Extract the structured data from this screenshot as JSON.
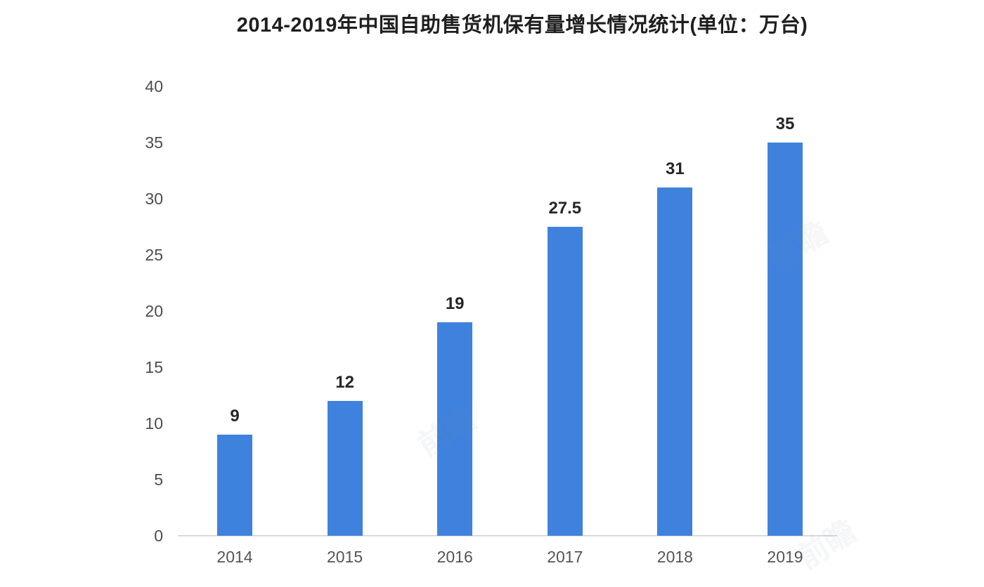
{
  "chart_data": {
    "type": "bar",
    "title": "2014-2019年中国自助售货机保有量增长情况统计(单位：万台)",
    "categories": [
      "2014",
      "2015",
      "2016",
      "2017",
      "2018",
      "2019"
    ],
    "values": [
      9,
      12,
      19,
      27.5,
      31,
      35
    ],
    "value_labels": [
      "9",
      "12",
      "19",
      "27.5",
      "31",
      "35"
    ],
    "xlabel": "",
    "ylabel": "",
    "ylim": [
      0,
      40
    ],
    "yticks": [
      0,
      5,
      10,
      15,
      20,
      25,
      30,
      35,
      40
    ],
    "grid": false,
    "legend_position": "none",
    "bar_color": "#3f82dd",
    "axis_line_color": "#d9d9d9",
    "y_tick_label_color": "#4d4d4d",
    "x_tick_label_color": "#545454",
    "value_label_color": "#262626",
    "title_color": "#1f1f1f",
    "background_color": "#ffffff"
  },
  "watermarks": [
    {
      "text": "前瞻"
    },
    {
      "text": "前瞻"
    },
    {
      "text": "前瞻"
    }
  ]
}
